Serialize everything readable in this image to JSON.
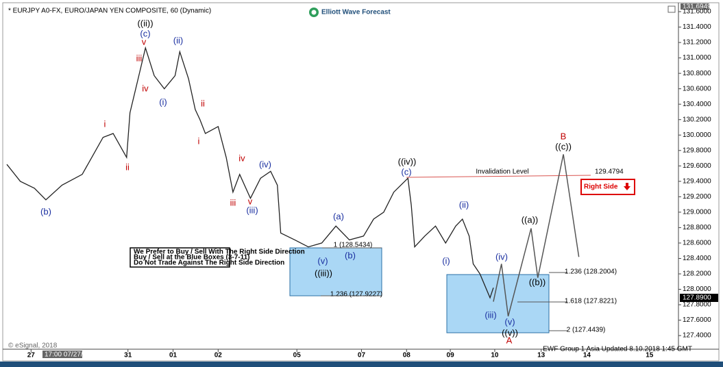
{
  "chart_data": {
    "type": "line",
    "title": "* EURJPY A0-FX, EURO/JAPAN YEN COMPOSITE, 60 (Dynamic)",
    "brand": "Elliott Wave Forecast",
    "top_price": "131.6949",
    "last_price": "127.8900",
    "right_side": "Right Side",
    "invalidation_text": "Invalidation Level",
    "invalidation_price": "129.4794",
    "copyright": "© eSignal, 2018",
    "cursor_time": "17:00 07/27/2018",
    "footer": "EWF Group 1 Asia Updated 8.10.2018 1:45 GMT",
    "note": [
      "We Prefer to Buy / Sell With The Right Side Direction",
      "Buy / Sell at the Blue Boxes (3-7-11)",
      "Do Not Trade Against The Right Side Direction"
    ],
    "fib_labels": [
      "1 (128.5434)",
      "1.236 (127.9227)",
      "1.236 (128.2004)",
      "1.618 (127.8221)",
      "2 (127.4439)"
    ],
    "annotations": [
      {
        "text": "(b)",
        "color": "#1a2fa0"
      },
      {
        "text": "i",
        "color": "#c00000"
      },
      {
        "text": "ii",
        "color": "#c00000"
      },
      {
        "text": "iii",
        "color": "#c00000"
      },
      {
        "text": "iv",
        "color": "#c00000"
      },
      {
        "text": "v",
        "color": "#c00000"
      },
      {
        "text": "(c)",
        "color": "#1a2fa0"
      },
      {
        "text": "((ii))",
        "color": "#000000"
      },
      {
        "text": "(i)",
        "color": "#1a2fa0"
      },
      {
        "text": "(ii)",
        "color": "#1a2fa0"
      },
      {
        "text": "ii",
        "color": "#c00000"
      },
      {
        "text": "i",
        "color": "#c00000"
      },
      {
        "text": "iv",
        "color": "#c00000"
      },
      {
        "text": "iii",
        "color": "#c00000"
      },
      {
        "text": "v",
        "color": "#c00000"
      },
      {
        "text": "(iii)",
        "color": "#1a2fa0"
      },
      {
        "text": "(iv)",
        "color": "#1a2fa0"
      },
      {
        "text": "(a)",
        "color": "#1a2fa0"
      },
      {
        "text": "(b)",
        "color": "#1a2fa0"
      },
      {
        "text": "(v)",
        "color": "#1a2fa0"
      },
      {
        "text": "((iii))",
        "color": "#000000"
      },
      {
        "text": "((iv))",
        "color": "#000000"
      },
      {
        "text": "(c)",
        "color": "#1a2fa0"
      },
      {
        "text": "(i)",
        "color": "#1a2fa0"
      },
      {
        "text": "(ii)",
        "color": "#1a2fa0"
      },
      {
        "text": "(iii)",
        "color": "#1a2fa0"
      },
      {
        "text": "(iv)",
        "color": "#1a2fa0"
      },
      {
        "text": "(v)",
        "color": "#1a2fa0"
      },
      {
        "text": "((v))",
        "color": "#000000"
      },
      {
        "text": "A",
        "color": "#c00000"
      },
      {
        "text": "((a))",
        "color": "#000000"
      },
      {
        "text": "((b))",
        "color": "#000000"
      },
      {
        "text": "B",
        "color": "#c00000"
      },
      {
        "text": "((c))",
        "color": "#000000"
      }
    ],
    "xlim": [
      0,
      100
    ],
    "xticks": [
      {
        "value": 3.8,
        "label": "27"
      },
      {
        "value": 18.2,
        "label": "31"
      },
      {
        "value": 24.9,
        "label": "01"
      },
      {
        "value": 31.6,
        "label": "02"
      },
      {
        "value": 43.3,
        "label": "05"
      },
      {
        "value": 52.9,
        "label": "07"
      },
      {
        "value": 59.6,
        "label": "08"
      },
      {
        "value": 66.1,
        "label": "09"
      },
      {
        "value": 72.7,
        "label": "10"
      },
      {
        "value": 79.6,
        "label": "13"
      },
      {
        "value": 86.4,
        "label": "14"
      },
      {
        "value": 95.7,
        "label": "15"
      }
    ],
    "ylim": [
      127.25,
      131.68
    ],
    "yticks": [
      {
        "value": 131.6,
        "label": "131.6000"
      },
      {
        "value": 131.4,
        "label": "131.4000"
      },
      {
        "value": 131.2,
        "label": "131.2000"
      },
      {
        "value": 131.0,
        "label": "131.0000"
      },
      {
        "value": 130.8,
        "label": "130.8000"
      },
      {
        "value": 130.6,
        "label": "130.6000"
      },
      {
        "value": 130.4,
        "label": "130.4000"
      },
      {
        "value": 130.2,
        "label": "130.2000"
      },
      {
        "value": 130.0,
        "label": "130.0000"
      },
      {
        "value": 129.8,
        "label": "129.8000"
      },
      {
        "value": 129.6,
        "label": "129.6000"
      },
      {
        "value": 129.4,
        "label": "129.4000"
      },
      {
        "value": 129.2,
        "label": "129.2000"
      },
      {
        "value": 129.0,
        "label": "129.0000"
      },
      {
        "value": 128.8,
        "label": "128.8000"
      },
      {
        "value": 128.6,
        "label": "128.6000"
      },
      {
        "value": 128.4,
        "label": "128.4000"
      },
      {
        "value": 128.2,
        "label": "128.2000"
      },
      {
        "value": 128.0,
        "label": "128.0000"
      },
      {
        "value": 127.8,
        "label": "127.8000"
      },
      {
        "value": 127.6,
        "label": "127.6000"
      },
      {
        "value": 127.4,
        "label": "127.4000"
      }
    ],
    "series": [
      {
        "color": "#222222",
        "x": [
          0.2,
          2.2,
          4.3,
          6.0,
          8.4,
          11.4,
          13.4,
          14.5,
          16.0,
          18.0,
          18.5,
          19.6,
          20.8,
          22.1,
          23.6,
          25.2,
          25.9,
          27.2,
          28.2,
          28.9,
          29.7,
          31.6,
          32.8,
          33.8,
          34.8,
          36.4,
          37.9,
          39.4,
          40.4,
          40.9,
          43.0,
          45.0,
          47.0,
          49.1,
          51.1,
          53.2,
          54.7,
          56.2,
          57.7,
          59.8,
          60.3,
          60.8,
          62.3,
          63.9,
          65.4,
          66.9,
          67.9,
          68.9,
          69.5,
          70.5,
          72.0,
          72.5
        ],
        "values": [
          129.62,
          129.4,
          129.31,
          129.16,
          129.35,
          129.49,
          129.8,
          129.97,
          130.02,
          129.71,
          130.29,
          130.69,
          131.13,
          130.77,
          130.6,
          130.77,
          131.08,
          130.73,
          130.33,
          130.2,
          130.02,
          130.11,
          129.71,
          129.26,
          129.49,
          129.18,
          129.44,
          129.53,
          129.35,
          128.73,
          128.64,
          128.55,
          128.6,
          128.82,
          128.64,
          128.69,
          128.91,
          129.0,
          129.26,
          129.44,
          129.09,
          128.55,
          128.69,
          128.82,
          128.6,
          128.82,
          128.91,
          128.69,
          128.33,
          128.2,
          127.89,
          128.02
        ]
      },
      {
        "color": "#555555",
        "x": [
          72.5,
          73.7,
          74.7,
          78.1,
          79.1,
          82.9,
          85.2
        ],
        "values": [
          127.84,
          128.33,
          127.65,
          128.79,
          128.15,
          129.75,
          128.42
        ]
      }
    ]
  }
}
